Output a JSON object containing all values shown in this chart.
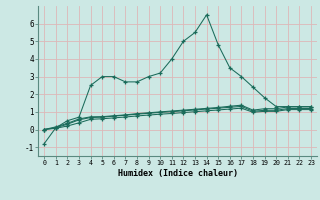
{
  "xlabel": "Humidex (Indice chaleur)",
  "xlim": [
    -0.5,
    23.5
  ],
  "ylim": [
    -1.5,
    7.0
  ],
  "yticks": [
    -1,
    0,
    1,
    2,
    3,
    4,
    5,
    6
  ],
  "xticks": [
    0,
    1,
    2,
    3,
    4,
    5,
    6,
    7,
    8,
    9,
    10,
    11,
    12,
    13,
    14,
    15,
    16,
    17,
    18,
    19,
    20,
    21,
    22,
    23
  ],
  "bg_color": "#cce8e4",
  "grid_color": "#ddb8b8",
  "line_color": "#1a6b5a",
  "series0": [
    -0.8,
    0.1,
    0.5,
    0.7,
    2.5,
    3.0,
    3.0,
    2.7,
    2.7,
    3.0,
    3.2,
    4.0,
    5.0,
    5.5,
    6.5,
    4.8,
    3.5,
    3.0,
    2.4,
    1.8,
    1.3,
    1.3,
    1.3,
    1.3
  ],
  "series1": [
    0.0,
    0.15,
    0.35,
    0.6,
    0.72,
    0.73,
    0.78,
    0.83,
    0.9,
    0.95,
    1.0,
    1.05,
    1.1,
    1.15,
    1.2,
    1.25,
    1.32,
    1.38,
    1.1,
    1.18,
    1.18,
    1.28,
    1.28,
    1.28
  ],
  "series2": [
    0.0,
    0.1,
    0.3,
    0.55,
    0.68,
    0.7,
    0.76,
    0.81,
    0.87,
    0.92,
    0.97,
    1.01,
    1.06,
    1.11,
    1.16,
    1.21,
    1.26,
    1.31,
    1.04,
    1.09,
    1.09,
    1.19,
    1.19,
    1.19
  ],
  "series3": [
    0.0,
    0.07,
    0.2,
    0.38,
    0.58,
    0.61,
    0.66,
    0.71,
    0.77,
    0.82,
    0.87,
    0.91,
    0.96,
    1.01,
    1.06,
    1.11,
    1.16,
    1.21,
    0.98,
    1.03,
    1.03,
    1.13,
    1.13,
    1.13
  ]
}
